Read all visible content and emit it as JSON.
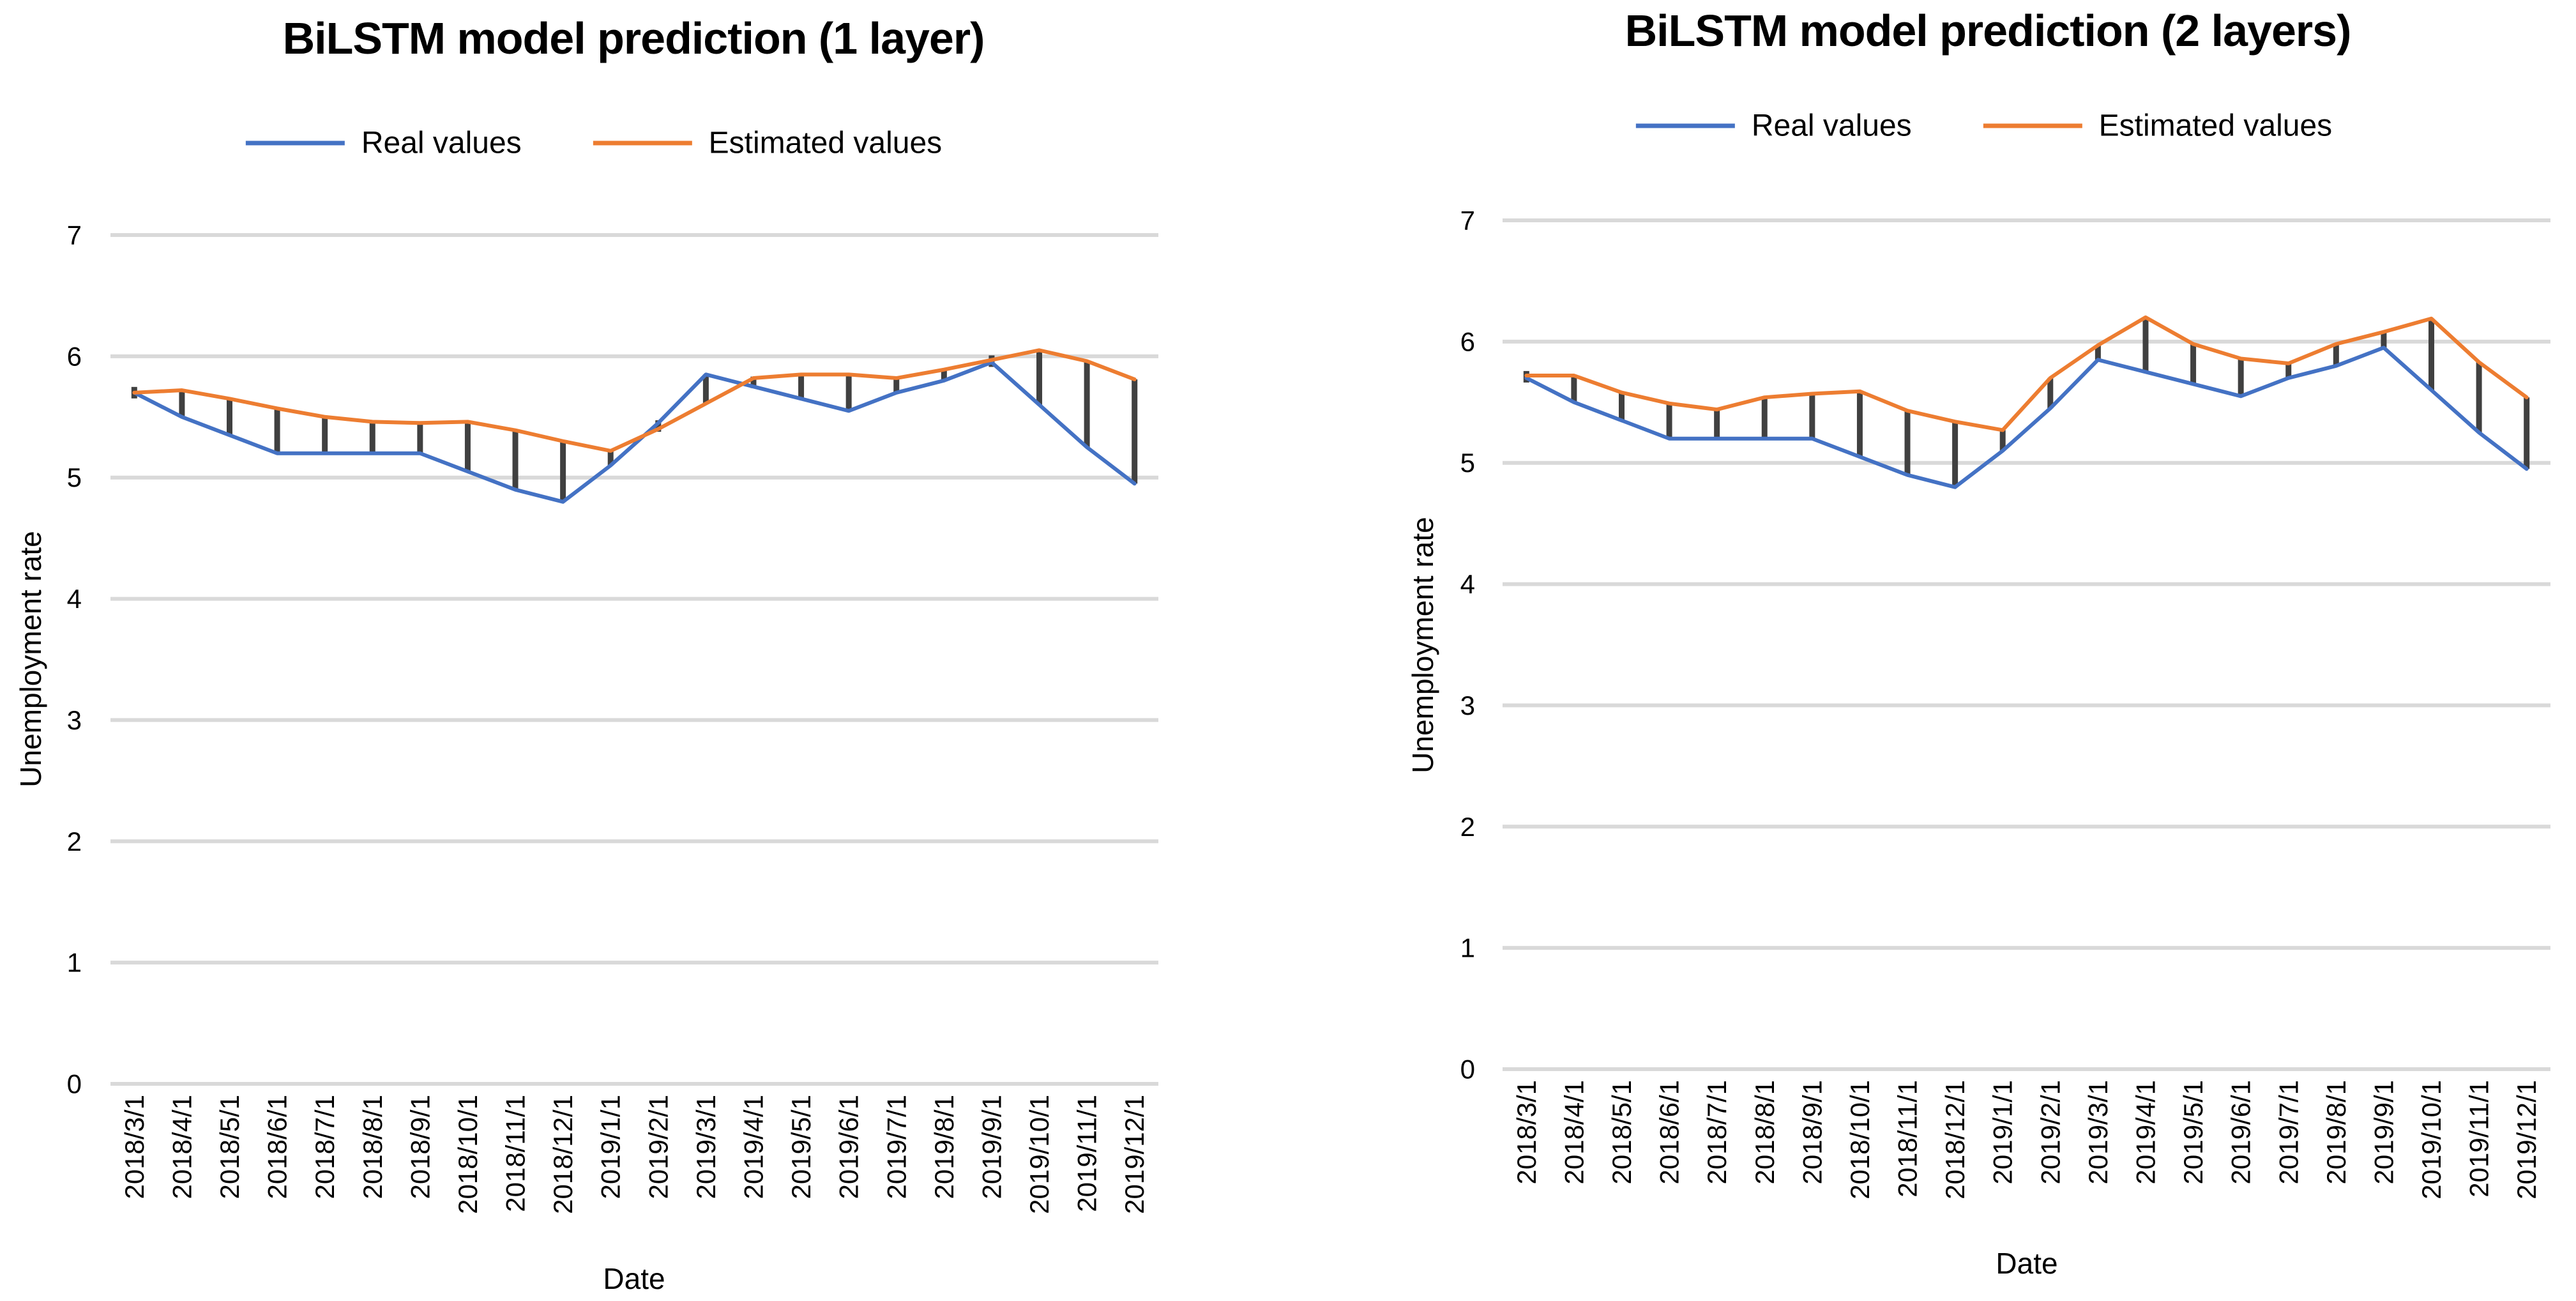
{
  "chart_data": [
    {
      "type": "line",
      "title": "BiLSTM model prediction (1 layer)",
      "xlabel": "Date",
      "ylabel": "Unemployment rate",
      "ylim": [
        0,
        7
      ],
      "yticks": [
        0,
        1,
        2,
        3,
        4,
        5,
        6,
        7
      ],
      "grid": "horizontal-only",
      "legend_position": "top",
      "error_bars_between_series": true,
      "categories": [
        "2018/3/1",
        "2018/4/1",
        "2018/5/1",
        "2018/6/1",
        "2018/7/1",
        "2018/8/1",
        "2018/9/1",
        "2018/10/1",
        "2018/11/1",
        "2018/12/1",
        "2019/1/1",
        "2019/2/1",
        "2019/3/1",
        "2019/4/1",
        "2019/5/1",
        "2019/6/1",
        "2019/7/1",
        "2019/8/1",
        "2019/9/1",
        "2019/10/1",
        "2019/11/1",
        "2019/12/1"
      ],
      "series": [
        {
          "name": "Real values",
          "color": "#4472C4",
          "values": [
            5.7,
            5.5,
            5.35,
            5.2,
            5.2,
            5.2,
            5.2,
            5.05,
            4.9,
            4.8,
            5.1,
            5.45,
            5.85,
            5.75,
            5.65,
            5.55,
            5.7,
            5.8,
            5.95,
            5.6,
            5.25,
            4.95
          ]
        },
        {
          "name": "Estimated values",
          "color": "#ED7D31",
          "values": [
            5.7,
            5.72,
            5.65,
            5.57,
            5.5,
            5.46,
            5.45,
            5.46,
            5.39,
            5.3,
            5.22,
            5.4,
            5.61,
            5.82,
            5.85,
            5.85,
            5.82,
            5.89,
            5.97,
            6.05,
            5.96,
            5.81
          ]
        }
      ],
      "colors": {
        "error_bar": "#404040",
        "gridline": "#D9D9D9"
      }
    },
    {
      "type": "line",
      "title": "BiLSTM model prediction (2 layers)",
      "xlabel": "Date",
      "ylabel": "Unemployment rate",
      "ylim": [
        0,
        7
      ],
      "yticks": [
        0,
        1,
        2,
        3,
        4,
        5,
        6,
        7
      ],
      "grid": "horizontal-only",
      "legend_position": "top",
      "error_bars_between_series": true,
      "categories": [
        "2018/3/1",
        "2018/4/1",
        "2018/5/1",
        "2018/6/1",
        "2018/7/1",
        "2018/8/1",
        "2018/9/1",
        "2018/10/1",
        "2018/11/1",
        "2018/12/1",
        "2019/1/1",
        "2019/2/1",
        "2019/3/1",
        "2019/4/1",
        "2019/5/1",
        "2019/6/1",
        "2019/7/1",
        "2019/8/1",
        "2019/9/1",
        "2019/10/1",
        "2019/11/1",
        "2019/12/1"
      ],
      "series": [
        {
          "name": "Real values",
          "color": "#4472C4",
          "values": [
            5.7,
            5.5,
            5.35,
            5.2,
            5.2,
            5.2,
            5.2,
            5.05,
            4.9,
            4.8,
            5.1,
            5.45,
            5.85,
            5.75,
            5.65,
            5.55,
            5.7,
            5.8,
            5.95,
            5.6,
            5.25,
            4.95
          ]
        },
        {
          "name": "Estimated values",
          "color": "#ED7D31",
          "values": [
            5.72,
            5.72,
            5.58,
            5.49,
            5.44,
            5.54,
            5.57,
            5.59,
            5.43,
            5.34,
            5.27,
            5.7,
            5.97,
            6.2,
            5.98,
            5.86,
            5.82,
            5.98,
            6.08,
            6.19,
            5.83,
            5.54
          ]
        }
      ],
      "colors": {
        "error_bar": "#404040",
        "gridline": "#D9D9D9"
      }
    }
  ]
}
